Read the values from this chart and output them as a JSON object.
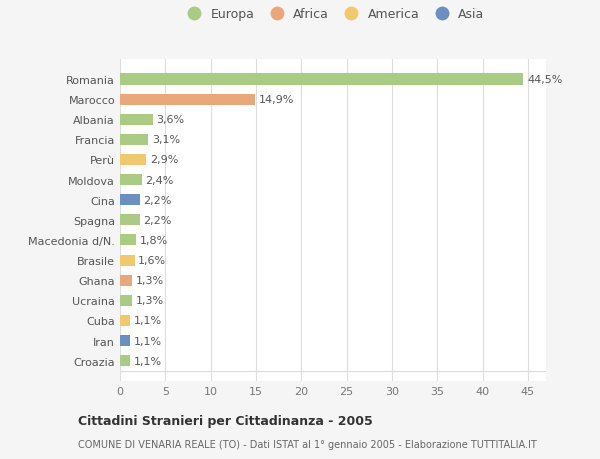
{
  "countries": [
    "Romania",
    "Marocco",
    "Albania",
    "Francia",
    "Perù",
    "Moldova",
    "Cina",
    "Spagna",
    "Macedonia d/N.",
    "Brasile",
    "Ghana",
    "Ucraina",
    "Cuba",
    "Iran",
    "Croazia"
  ],
  "values": [
    44.5,
    14.9,
    3.6,
    3.1,
    2.9,
    2.4,
    2.2,
    2.2,
    1.8,
    1.6,
    1.3,
    1.3,
    1.1,
    1.1,
    1.1
  ],
  "labels": [
    "44,5%",
    "14,9%",
    "3,6%",
    "3,1%",
    "2,9%",
    "2,4%",
    "2,2%",
    "2,2%",
    "1,8%",
    "1,6%",
    "1,3%",
    "1,3%",
    "1,1%",
    "1,1%",
    "1,1%"
  ],
  "continents": [
    "Europa",
    "Africa",
    "Europa",
    "Europa",
    "America",
    "Europa",
    "Asia",
    "Europa",
    "Europa",
    "America",
    "Africa",
    "Europa",
    "America",
    "Asia",
    "Europa"
  ],
  "continent_colors": {
    "Europa": "#aacb86",
    "Africa": "#e8a87c",
    "America": "#f0c96e",
    "Asia": "#6b8fbf"
  },
  "legend_order": [
    "Europa",
    "Africa",
    "America",
    "Asia"
  ],
  "title": "Cittadini Stranieri per Cittadinanza - 2005",
  "subtitle": "COMUNE DI VENARIA REALE (TO) - Dati ISTAT al 1° gennaio 2005 - Elaborazione TUTTITALIA.IT",
  "xlim": [
    0,
    47
  ],
  "xticks": [
    0,
    5,
    10,
    15,
    20,
    25,
    30,
    35,
    40,
    45
  ],
  "fig_bg_color": "#f5f5f5",
  "plot_bg_color": "#ffffff",
  "grid_color": "#dddddd",
  "bar_height": 0.55,
  "label_fontsize": 8,
  "tick_fontsize": 8,
  "legend_fontsize": 9
}
